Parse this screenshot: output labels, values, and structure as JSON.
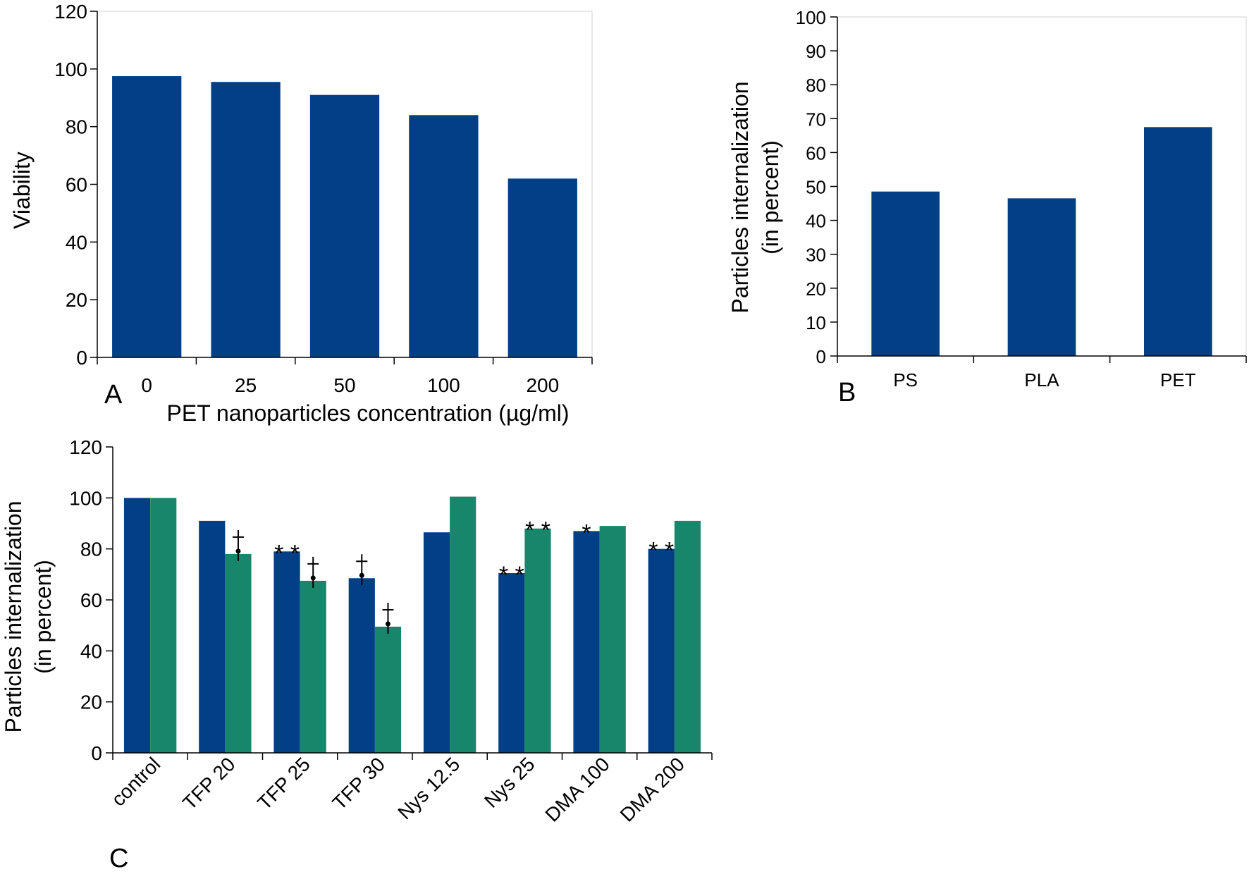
{
  "chart_data": [
    {
      "panel": "A",
      "type": "bar",
      "xlabel": "PET nanoparticles concentration (µg/ml)",
      "ylabel": "Viability",
      "ylim": [
        0,
        120
      ],
      "yticks": [
        0,
        20,
        40,
        60,
        80,
        100,
        120
      ],
      "categories": [
        "0",
        "25",
        "50",
        "100",
        "200"
      ],
      "series": [
        {
          "values": [
            97.5,
            95.5,
            91,
            84,
            62
          ],
          "color": "#033f87"
        }
      ],
      "grid": false
    },
    {
      "panel": "B",
      "type": "bar",
      "xlabel": "",
      "ylabel": [
        "Particles internalization",
        "(in percent)"
      ],
      "ylim": [
        0,
        100
      ],
      "yticks": [
        0,
        10,
        20,
        30,
        40,
        50,
        60,
        70,
        80,
        90,
        100
      ],
      "categories": [
        "PS",
        "PLA",
        "PET"
      ],
      "series": [
        {
          "values": [
            48.5,
            46.5,
            67.5
          ],
          "color": "#033f87"
        }
      ],
      "grid": false
    },
    {
      "panel": "C",
      "type": "bar",
      "xlabel": "",
      "ylabel": [
        "Particles internalization",
        "(in percent)"
      ],
      "ylim": [
        0,
        120
      ],
      "yticks": [
        0,
        20,
        40,
        60,
        80,
        100,
        120
      ],
      "categories": [
        "control",
        "TFP 20",
        "TFP 25",
        "TFP 30",
        "Nys 12.5",
        "Nys 25",
        "DMA 100",
        "DMA 200"
      ],
      "series": [
        {
          "values": [
            100,
            91,
            79,
            68.5,
            86.5,
            70.5,
            87,
            80
          ],
          "color": "#033f87",
          "markers": [
            "",
            "",
            "**",
            "†",
            "",
            "**",
            "*",
            "**"
          ]
        },
        {
          "values": [
            100,
            78,
            67.5,
            49.5,
            100.5,
            88,
            89,
            91
          ],
          "color": "#17866a",
          "markers": [
            "",
            "†",
            "†",
            "†",
            "",
            "**",
            "",
            ""
          ]
        }
      ],
      "grid": false
    }
  ]
}
